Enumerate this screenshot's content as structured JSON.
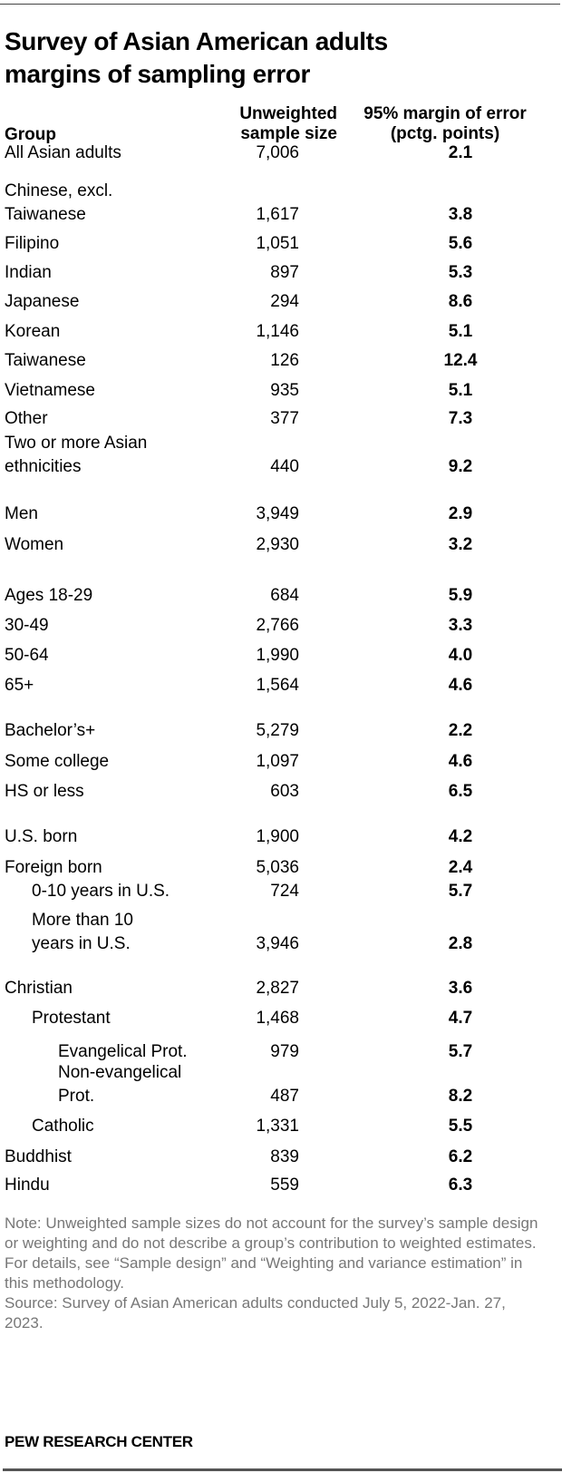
{
  "title": "Survey of Asian American adults margins of sampling error",
  "title_lines": [
    "Survey of Asian American adults",
    "margins of sampling error"
  ],
  "headers": {
    "group": "Group",
    "sample_line1": "Unweighted",
    "sample_line2": "sample size",
    "moe_line1": "95% margin of error",
    "moe_line2": "(pctg. points)"
  },
  "rows": [
    {
      "label": "All Asian adults",
      "n": "7,006",
      "moe": "2.1",
      "indent": 0
    },
    {
      "label_line1": "Chinese, excl.",
      "label": "Taiwanese",
      "n": "1,617",
      "moe": "3.8",
      "indent": 0
    },
    {
      "label": "Filipino",
      "n": "1,051",
      "moe": "5.6",
      "indent": 0
    },
    {
      "label": "Indian",
      "n": "897",
      "moe": "5.3",
      "indent": 0
    },
    {
      "label": "Japanese",
      "n": "294",
      "moe": "8.6",
      "indent": 0
    },
    {
      "label": "Korean",
      "n": "1,146",
      "moe": "5.1",
      "indent": 0
    },
    {
      "label": "Taiwanese",
      "n": "126",
      "moe": "12.4",
      "indent": 0
    },
    {
      "label": "Vietnamese",
      "n": "935",
      "moe": "5.1",
      "indent": 0
    },
    {
      "label": "Other",
      "n": "377",
      "moe": "7.3",
      "indent": 0
    },
    {
      "label_line1": "Two or more Asian",
      "label": "ethnicities",
      "n": "440",
      "moe": "9.2",
      "indent": 0
    },
    {
      "label": "Men",
      "n": "3,949",
      "moe": "2.9",
      "indent": 0
    },
    {
      "label": "Women",
      "n": "2,930",
      "moe": "3.2",
      "indent": 0
    },
    {
      "label": "Ages 18-29",
      "n": "684",
      "moe": "5.9",
      "indent": 0
    },
    {
      "label": "30-49",
      "n": "2,766",
      "moe": "3.3",
      "indent": 0
    },
    {
      "label": "50-64",
      "n": "1,990",
      "moe": "4.0",
      "indent": 0
    },
    {
      "label": "65+",
      "n": "1,564",
      "moe": "4.6",
      "indent": 0
    },
    {
      "label": "Bachelor’s+",
      "n": "5,279",
      "moe": "2.2",
      "indent": 0
    },
    {
      "label": "Some college",
      "n": "1,097",
      "moe": "4.6",
      "indent": 0
    },
    {
      "label": "HS or less",
      "n": "603",
      "moe": "6.5",
      "indent": 0
    },
    {
      "label": "U.S. born",
      "n": "1,900",
      "moe": "4.2",
      "indent": 0
    },
    {
      "label": "Foreign born",
      "n": "5,036",
      "moe": "2.4",
      "indent": 0
    },
    {
      "label": "0-10 years in U.S.",
      "n": "724",
      "moe": "5.7",
      "indent": 1
    },
    {
      "label_line1": "More than 10",
      "label": "years in U.S.",
      "n": "3,946",
      "moe": "2.8",
      "indent": 1
    },
    {
      "label": "Christian",
      "n": "2,827",
      "moe": "3.6",
      "indent": 0
    },
    {
      "label": "Protestant",
      "n": "1,468",
      "moe": "4.7",
      "indent": 1
    },
    {
      "label": "Evangelical Prot.",
      "n": "979",
      "moe": "5.7",
      "indent": 2
    },
    {
      "label_line1": "Non-evangelical",
      "label": "Prot.",
      "n": "487",
      "moe": "8.2",
      "indent": 2
    },
    {
      "label": "Catholic",
      "n": "1,331",
      "moe": "5.5",
      "indent": 1
    },
    {
      "label": "Buddhist",
      "n": "839",
      "moe": "6.2",
      "indent": 0
    },
    {
      "label": "Hindu",
      "n": "559",
      "moe": "6.3",
      "indent": 0
    }
  ],
  "notes": {
    "note": "Note: Unweighted sample sizes do not account for the survey’s sample design or weighting and do not describe a group’s contribution to weighted estimates. For details, see “Sample design” and “Weighting and variance estimation” in this methodology.",
    "source": "Source: Survey of Asian American adults conducted July 5, 2022-Jan. 27, 2023."
  },
  "branding": "PEW RESEARCH CENTER",
  "colors": {
    "text": "#000000",
    "note_text": "#777777",
    "rule": "#444444"
  },
  "chart_data": {
    "type": "table",
    "title": "Survey of Asian American adults margins of sampling error",
    "columns": [
      "Group",
      "Unweighted sample size",
      "95% margin of error (pctg. points)"
    ],
    "rows": [
      [
        "All Asian adults",
        7006,
        2.1
      ],
      [
        "Chinese, excl. Taiwanese",
        1617,
        3.8
      ],
      [
        "Filipino",
        1051,
        5.6
      ],
      [
        "Indian",
        897,
        5.3
      ],
      [
        "Japanese",
        294,
        8.6
      ],
      [
        "Korean",
        1146,
        5.1
      ],
      [
        "Taiwanese",
        126,
        12.4
      ],
      [
        "Vietnamese",
        935,
        5.1
      ],
      [
        "Other",
        377,
        7.3
      ],
      [
        "Two or more Asian ethnicities",
        440,
        9.2
      ],
      [
        "Men",
        3949,
        2.9
      ],
      [
        "Women",
        2930,
        3.2
      ],
      [
        "Ages 18-29",
        684,
        5.9
      ],
      [
        "30-49",
        2766,
        3.3
      ],
      [
        "50-64",
        1990,
        4.0
      ],
      [
        "65+",
        1564,
        4.6
      ],
      [
        "Bachelor’s+",
        5279,
        2.2
      ],
      [
        "Some college",
        1097,
        4.6
      ],
      [
        "HS or less",
        603,
        6.5
      ],
      [
        "U.S. born",
        1900,
        4.2
      ],
      [
        "Foreign born",
        5036,
        2.4
      ],
      [
        "0-10 years in U.S.",
        724,
        5.7
      ],
      [
        "More than 10 years in U.S.",
        3946,
        2.8
      ],
      [
        "Christian",
        2827,
        3.6
      ],
      [
        "Protestant",
        1468,
        4.7
      ],
      [
        "Evangelical Prot.",
        979,
        5.7
      ],
      [
        "Non-evangelical Prot.",
        487,
        8.2
      ],
      [
        "Catholic",
        1331,
        5.5
      ],
      [
        "Buddhist",
        839,
        6.2
      ],
      [
        "Hindu",
        559,
        6.3
      ]
    ]
  }
}
